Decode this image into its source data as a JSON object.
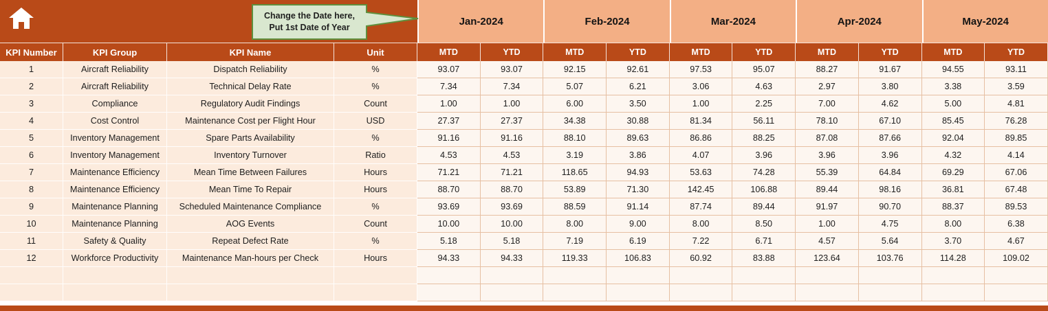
{
  "callout": {
    "line1": "Change the Date here,",
    "line2": "Put 1st Date of Year"
  },
  "months": [
    "Jan-2024",
    "Feb-2024",
    "Mar-2024",
    "Apr-2024",
    "May-2024"
  ],
  "period_headers": [
    "MTD",
    "YTD"
  ],
  "table": {
    "column_headers": [
      "KPI Number",
      "KPI Group",
      "KPI Name",
      "Unit"
    ],
    "rows": [
      {
        "num": "1",
        "group": "Aircraft Reliability",
        "name": "Dispatch Reliability",
        "unit": "%",
        "values": [
          "93.07",
          "93.07",
          "92.15",
          "92.61",
          "97.53",
          "95.07",
          "88.27",
          "91.67",
          "94.55",
          "93.11"
        ]
      },
      {
        "num": "2",
        "group": "Aircraft Reliability",
        "name": "Technical Delay Rate",
        "unit": "%",
        "values": [
          "7.34",
          "7.34",
          "5.07",
          "6.21",
          "3.06",
          "4.63",
          "2.97",
          "3.80",
          "3.38",
          "3.59"
        ]
      },
      {
        "num": "3",
        "group": "Compliance",
        "name": "Regulatory Audit Findings",
        "unit": "Count",
        "values": [
          "1.00",
          "1.00",
          "6.00",
          "3.50",
          "1.00",
          "2.25",
          "7.00",
          "4.62",
          "5.00",
          "4.81"
        ]
      },
      {
        "num": "4",
        "group": "Cost Control",
        "name": "Maintenance Cost per Flight Hour",
        "unit": "USD",
        "values": [
          "27.37",
          "27.37",
          "34.38",
          "30.88",
          "81.34",
          "56.11",
          "78.10",
          "67.10",
          "85.45",
          "76.28"
        ]
      },
      {
        "num": "5",
        "group": "Inventory Management",
        "name": "Spare Parts Availability",
        "unit": "%",
        "values": [
          "91.16",
          "91.16",
          "88.10",
          "89.63",
          "86.86",
          "88.25",
          "87.08",
          "87.66",
          "92.04",
          "89.85"
        ]
      },
      {
        "num": "6",
        "group": "Inventory Management",
        "name": "Inventory Turnover",
        "unit": "Ratio",
        "values": [
          "4.53",
          "4.53",
          "3.19",
          "3.86",
          "4.07",
          "3.96",
          "3.96",
          "3.96",
          "4.32",
          "4.14"
        ]
      },
      {
        "num": "7",
        "group": "Maintenance Efficiency",
        "name": "Mean Time Between Failures",
        "unit": "Hours",
        "values": [
          "71.21",
          "71.21",
          "118.65",
          "94.93",
          "53.63",
          "74.28",
          "55.39",
          "64.84",
          "69.29",
          "67.06"
        ]
      },
      {
        "num": "8",
        "group": "Maintenance Efficiency",
        "name": "Mean Time To Repair",
        "unit": "Hours",
        "values": [
          "88.70",
          "88.70",
          "53.89",
          "71.30",
          "142.45",
          "106.88",
          "89.44",
          "98.16",
          "36.81",
          "67.48"
        ]
      },
      {
        "num": "9",
        "group": "Maintenance Planning",
        "name": "Scheduled Maintenance Compliance",
        "unit": "%",
        "values": [
          "93.69",
          "93.69",
          "88.59",
          "91.14",
          "87.74",
          "89.44",
          "91.97",
          "90.70",
          "88.37",
          "89.53"
        ]
      },
      {
        "num": "10",
        "group": "Maintenance Planning",
        "name": "AOG Events",
        "unit": "Count",
        "values": [
          "10.00",
          "10.00",
          "8.00",
          "9.00",
          "8.00",
          "8.50",
          "1.00",
          "4.75",
          "8.00",
          "6.38"
        ]
      },
      {
        "num": "11",
        "group": "Safety & Quality",
        "name": "Repeat Defect Rate",
        "unit": "%",
        "values": [
          "5.18",
          "5.18",
          "7.19",
          "6.19",
          "7.22",
          "6.71",
          "4.57",
          "5.64",
          "3.70",
          "4.67"
        ]
      },
      {
        "num": "12",
        "group": "Workforce Productivity",
        "name": "Maintenance Man-hours per Check",
        "unit": "Hours",
        "values": [
          "94.33",
          "94.33",
          "119.33",
          "106.83",
          "60.92",
          "83.88",
          "123.64",
          "103.76",
          "114.28",
          "109.02"
        ]
      }
    ],
    "empty_row_count": 2
  },
  "colors": {
    "header_dark": "#b94a18",
    "month_band": "#f3af85",
    "label_bg": "#fcebdd",
    "gridline": "#e6bfa2",
    "cell_bg": "#fdf6f0",
    "callout_fill": "#d9e7cf",
    "callout_border": "#5f8f3d"
  }
}
